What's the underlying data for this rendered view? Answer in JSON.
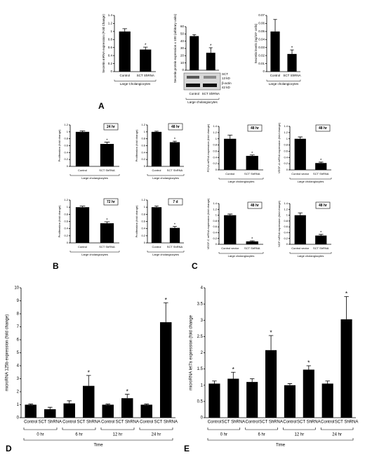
{
  "panel_labels": [
    "A",
    "B",
    "C",
    "D",
    "E"
  ],
  "chart_data": [
    {
      "type": "bar",
      "ylabel": "Secretin mRNA expression (Fold Change)",
      "categories": [
        "Control",
        "SCT ShRNA"
      ],
      "values": [
        1.0,
        0.55
      ],
      "errors": [
        0.07,
        0.06
      ],
      "significant": [
        false,
        true
      ],
      "marker": "*",
      "ylim": [
        0,
        1.4
      ],
      "yticks": [
        0,
        0.2,
        0.4,
        0.6,
        0.8,
        1,
        1.2,
        1.4
      ],
      "group_label": "Large Cholangiocytes",
      "color": "#000000"
    },
    {
      "type": "bar",
      "ylabel": "Secretin protein expression x 100 (arbitrary units)",
      "categories": [
        "Control",
        "SCT ShRNA"
      ],
      "values": [
        47,
        24
      ],
      "errors": [
        2,
        7
      ],
      "significant": [
        false,
        true
      ],
      "marker": "*",
      "ylim": [
        0,
        60
      ],
      "yticks": [
        0,
        10,
        20,
        30,
        40,
        50,
        60
      ],
      "blot_labels": [
        "SCT",
        "13 kD",
        "β-actin",
        "42 kD"
      ],
      "group_label": "Large cholangiocytes",
      "color": "#000000"
    },
    {
      "type": "bar",
      "ylabel": "Secretin levels (ng/10⁶ cells)",
      "categories": [
        "Control",
        "SCT ShRNA"
      ],
      "values": [
        0.05,
        0.022
      ],
      "errors": [
        0.015,
        0.005
      ],
      "significant": [
        false,
        true
      ],
      "marker": "*",
      "ylim": [
        0,
        0.07
      ],
      "yticks": [
        0,
        0.01,
        0.02,
        0.03,
        0.04,
        0.05,
        0.06,
        0.07
      ],
      "group_label": "Large cholangiocytes",
      "color": "#000000"
    },
    {
      "type": "bar",
      "ylabel": "Proliferation (fold change)",
      "badge": "24 hr",
      "categories": [
        "Control",
        "SCT ShRNA"
      ],
      "values": [
        1.0,
        0.65
      ],
      "errors": [
        0.03,
        0.05
      ],
      "significant": [
        false,
        true
      ],
      "marker": "*",
      "ylim": [
        0,
        1.2
      ],
      "yticks": [
        0,
        0.2,
        0.4,
        0.6,
        0.8,
        1,
        1.2
      ],
      "group_label": "Large cholangiocytes",
      "color": "#000000"
    },
    {
      "type": "bar",
      "ylabel": "Proliferation (fold change)",
      "badge": "48 hr",
      "categories": [
        "Control",
        "SCT ShRNA"
      ],
      "values": [
        1.0,
        0.7
      ],
      "errors": [
        0.02,
        0.03
      ],
      "significant": [
        false,
        true
      ],
      "marker": "*",
      "ylim": [
        0,
        1.2
      ],
      "yticks": [
        0,
        0.2,
        0.4,
        0.6,
        0.8,
        1,
        1.2
      ],
      "group_label": "Large cholangiocytes",
      "color": "#000000"
    },
    {
      "type": "bar",
      "ylabel": "Proliferation (fold change)",
      "badge": "72 hr",
      "categories": [
        "Control",
        "SCT ShRNA"
      ],
      "values": [
        1.0,
        0.55
      ],
      "errors": [
        0.03,
        0.04
      ],
      "significant": [
        false,
        true
      ],
      "marker": "*",
      "ylim": [
        0,
        1.2
      ],
      "yticks": [
        0,
        0.2,
        0.4,
        0.6,
        0.8,
        1,
        1.2
      ],
      "group_label": "Large cholangiocytes",
      "color": "#000000"
    },
    {
      "type": "bar",
      "ylabel": "Proliferation (fold change)",
      "badge": "7 d",
      "categories": [
        "Control",
        "SCT ShRNA"
      ],
      "values": [
        1.0,
        0.42
      ],
      "errors": [
        0.03,
        0.04
      ],
      "significant": [
        false,
        true
      ],
      "marker": "*",
      "ylim": [
        0,
        1.2
      ],
      "yticks": [
        0,
        0.2,
        0.4,
        0.6,
        0.8,
        1,
        1.2
      ],
      "group_label": "Large cholangiocytes",
      "color": "#000000"
    },
    {
      "type": "bar",
      "ylabel": "PCNA mRNA expression (fold change)",
      "badge": "48 hr",
      "categories": [
        "Control",
        "SCT ShRNA"
      ],
      "values": [
        1.0,
        0.45
      ],
      "errors": [
        0.12,
        0.03
      ],
      "significant": [
        false,
        true
      ],
      "marker": "*",
      "ylim": [
        0,
        1.4
      ],
      "yticks": [
        0,
        0.2,
        0.4,
        0.6,
        0.8,
        1,
        1.2,
        1.4
      ],
      "group_label": "Large cholangiocytes",
      "color": "#000000"
    },
    {
      "type": "bar",
      "ylabel": "VEGF-A mRNA expression (fold change)",
      "badge": "48 hr",
      "categories": [
        "Control vector",
        "SCT ShRNA"
      ],
      "values": [
        1.0,
        0.22
      ],
      "errors": [
        0.06,
        0.03
      ],
      "significant": [
        false,
        true
      ],
      "marker": "*",
      "ylim": [
        0,
        1.4
      ],
      "yticks": [
        0,
        0.2,
        0.4,
        0.6,
        0.8,
        1,
        1.2,
        1.4
      ],
      "group_label": "Large cholangiocytes",
      "color": "#000000"
    },
    {
      "type": "bar",
      "ylabel": "VEGF-C mRNA expression (fold change)",
      "badge": "48 hr",
      "categories": [
        "Control vector",
        "SCT ShRNA"
      ],
      "values": [
        1.0,
        0.1
      ],
      "errors": [
        0.04,
        0.02
      ],
      "significant": [
        false,
        true
      ],
      "marker": "*",
      "ylim": [
        0,
        1.4
      ],
      "yticks": [
        0,
        0.2,
        0.4,
        0.6,
        0.8,
        1,
        1.2,
        1.4
      ],
      "group_label": "Large cholangiocytes",
      "color": "#000000"
    },
    {
      "type": "bar",
      "ylabel": "NGF mRNA expression (fold change)",
      "badge": "48 hr",
      "categories": [
        "Control vector",
        "SCT ShRNA"
      ],
      "values": [
        1.0,
        0.3
      ],
      "errors": [
        0.08,
        0.04
      ],
      "significant": [
        false,
        true
      ],
      "marker": "*",
      "ylim": [
        0,
        1.4
      ],
      "yticks": [
        0,
        0.2,
        0.4,
        0.6,
        0.8,
        1,
        1.2,
        1.4
      ],
      "group_label": "Large cholangiocytes",
      "color": "#000000"
    },
    {
      "type": "bar",
      "ylabel": "microRNA 125b expression (fold change)",
      "categories": [
        "Control",
        "SCT ShRNA",
        "Control",
        "SCT ShRNA",
        "Control",
        "SCT ShRNA",
        "Control",
        "SCT ShRNA"
      ],
      "values": [
        1.0,
        0.65,
        1.1,
        2.45,
        1.0,
        1.5,
        1.0,
        7.35
      ],
      "errors": [
        0.05,
        0.15,
        0.2,
        0.8,
        0.05,
        0.3,
        0.05,
        1.5
      ],
      "significant": [
        false,
        false,
        false,
        true,
        false,
        true,
        false,
        true
      ],
      "marker": "*",
      "ylim": [
        0,
        10
      ],
      "yticks": [
        0,
        1,
        2,
        3,
        4,
        5,
        6,
        7,
        8,
        9,
        10
      ],
      "time_labels": [
        "0 hr",
        "6 hr",
        "12 hr",
        "24 hr"
      ],
      "group_label": "Time",
      "color": "#000000"
    },
    {
      "type": "bar",
      "ylabel": "microRNA let7a expression (fold change",
      "categories": [
        "Control",
        "SCT ShRNA",
        "Control",
        "SCT ShRNA",
        "Control",
        "SCT ShRNA",
        "Control",
        "SCT ShRNA"
      ],
      "values": [
        1.05,
        1.2,
        1.1,
        2.08,
        1.0,
        1.48,
        1.05,
        3.03
      ],
      "errors": [
        0.08,
        0.2,
        0.1,
        0.45,
        0.05,
        0.12,
        0.08,
        0.7
      ],
      "significant": [
        false,
        true,
        false,
        true,
        false,
        true,
        false,
        true
      ],
      "marker": "*",
      "ylim": [
        0,
        4
      ],
      "yticks": [
        0,
        0.5,
        1,
        1.5,
        2,
        2.5,
        3,
        3.5,
        4
      ],
      "time_labels": [
        "0 hr",
        "6 hr",
        "12 hr",
        "24 hr"
      ],
      "group_label": "Time",
      "color": "#000000"
    }
  ]
}
